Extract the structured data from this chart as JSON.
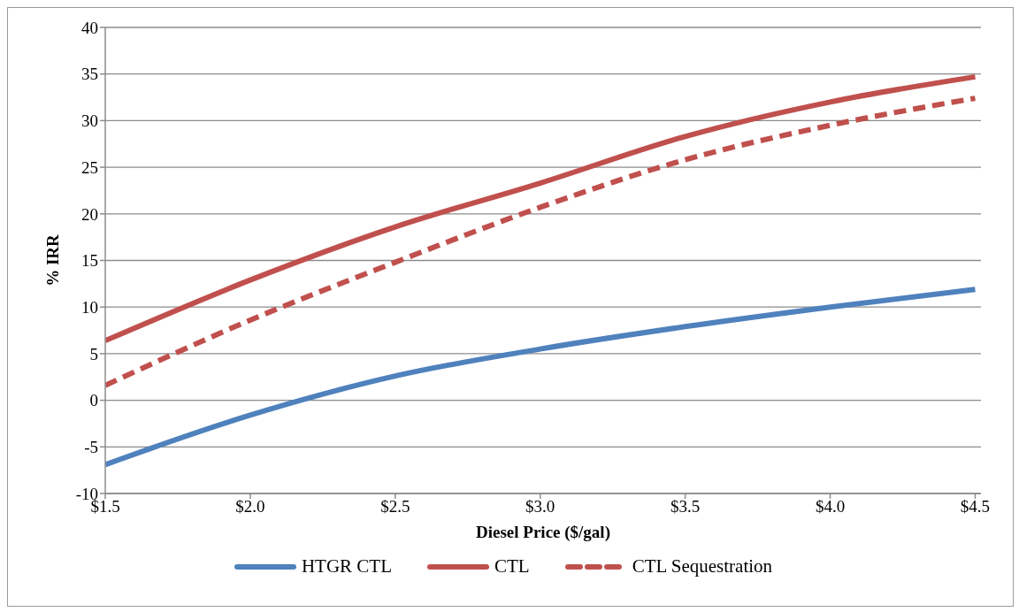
{
  "chart_data": {
    "type": "line",
    "xlabel": "Diesel Price ($/gal)",
    "ylabel": "% IRR",
    "x": [
      1.5,
      2.0,
      2.5,
      3.0,
      3.5,
      4.0,
      4.5
    ],
    "series": [
      {
        "name": "HTGR CTL",
        "color": "#4f81bd",
        "line_style": "solid",
        "values": [
          -6.9,
          -1.6,
          2.6,
          5.5,
          7.9,
          10,
          11.9
        ]
      },
      {
        "name": "CTL",
        "color": "#c0504d",
        "line_style": "solid",
        "values": [
          6.4,
          12.9,
          18.6,
          23.3,
          28.3,
          32,
          34.7
        ]
      },
      {
        "name": "CTL Sequestration",
        "color": "#c0504d",
        "line_style": "dashed",
        "values": [
          1.6,
          8.6,
          14.8,
          20.7,
          25.8,
          29.5,
          32.4
        ]
      }
    ],
    "xlim": [
      1.5,
      4.52
    ],
    "xticks": [
      {
        "value": 1.5,
        "label": "$1.5"
      },
      {
        "value": 2.0,
        "label": "$2.0"
      },
      {
        "value": 2.5,
        "label": "$2.5"
      },
      {
        "value": 3.0,
        "label": "$3.0"
      },
      {
        "value": 3.5,
        "label": "$3.5"
      },
      {
        "value": 4.0,
        "label": "$4.0"
      },
      {
        "value": 4.5,
        "label": "$4.5"
      }
    ],
    "ylim": [
      -10,
      40
    ],
    "yticks": [
      -10,
      -5,
      0,
      5,
      10,
      15,
      20,
      25,
      30,
      35,
      40
    ],
    "grid": "y",
    "legend": "bottom",
    "marker": "none"
  }
}
